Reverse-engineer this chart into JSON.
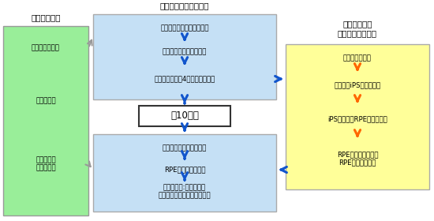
{
  "title_center": "先端医療センター病院",
  "title_left": "中央市民病院",
  "title_right": "理化学研究所\n（細胞培養施設）",
  "left_box_color": "#99ee99",
  "left_box_edge": "#999999",
  "left_texts": [
    "対象患者の選定",
    "一部の検査",
    "術中術後の\n緊急時対応"
  ],
  "center_top_box_color": "#c5e0f5",
  "center_top_box_edge": "#aaaaaa",
  "center_top_texts": [
    "臨床研究の説明・同意取得",
    "適格性の検査・一次登録",
    "上腕部より直径4㎜皮膚組織採取"
  ],
  "center_mid_text": "約10ヵ月",
  "center_bot_box_color": "#c5e0f5",
  "center_bot_box_edge": "#aaaaaa",
  "center_bot_texts": [
    "適格性の検査・二次登録",
    "RPEシート移植手術",
    "観察と評価:移植後１年\n観察終了後３年まで追跡調査"
  ],
  "right_box_color": "#ffff99",
  "right_box_edge": "#aaaaaa",
  "right_texts": [
    "皮膚細胞の培養",
    "患者由来iPS細胞の作製",
    "iPS細胞からRPE細胞を作製",
    "RPE細胞を増やして\nRPEシートを作製"
  ],
  "blue_arrow_color": "#1155cc",
  "orange_arrow_color": "#ff6600",
  "gray_arrow_color": "#999999",
  "bg_color": "#ffffff",
  "font_size_title": 7.5,
  "font_size_label": 6.2,
  "font_size_mid": 8.5
}
